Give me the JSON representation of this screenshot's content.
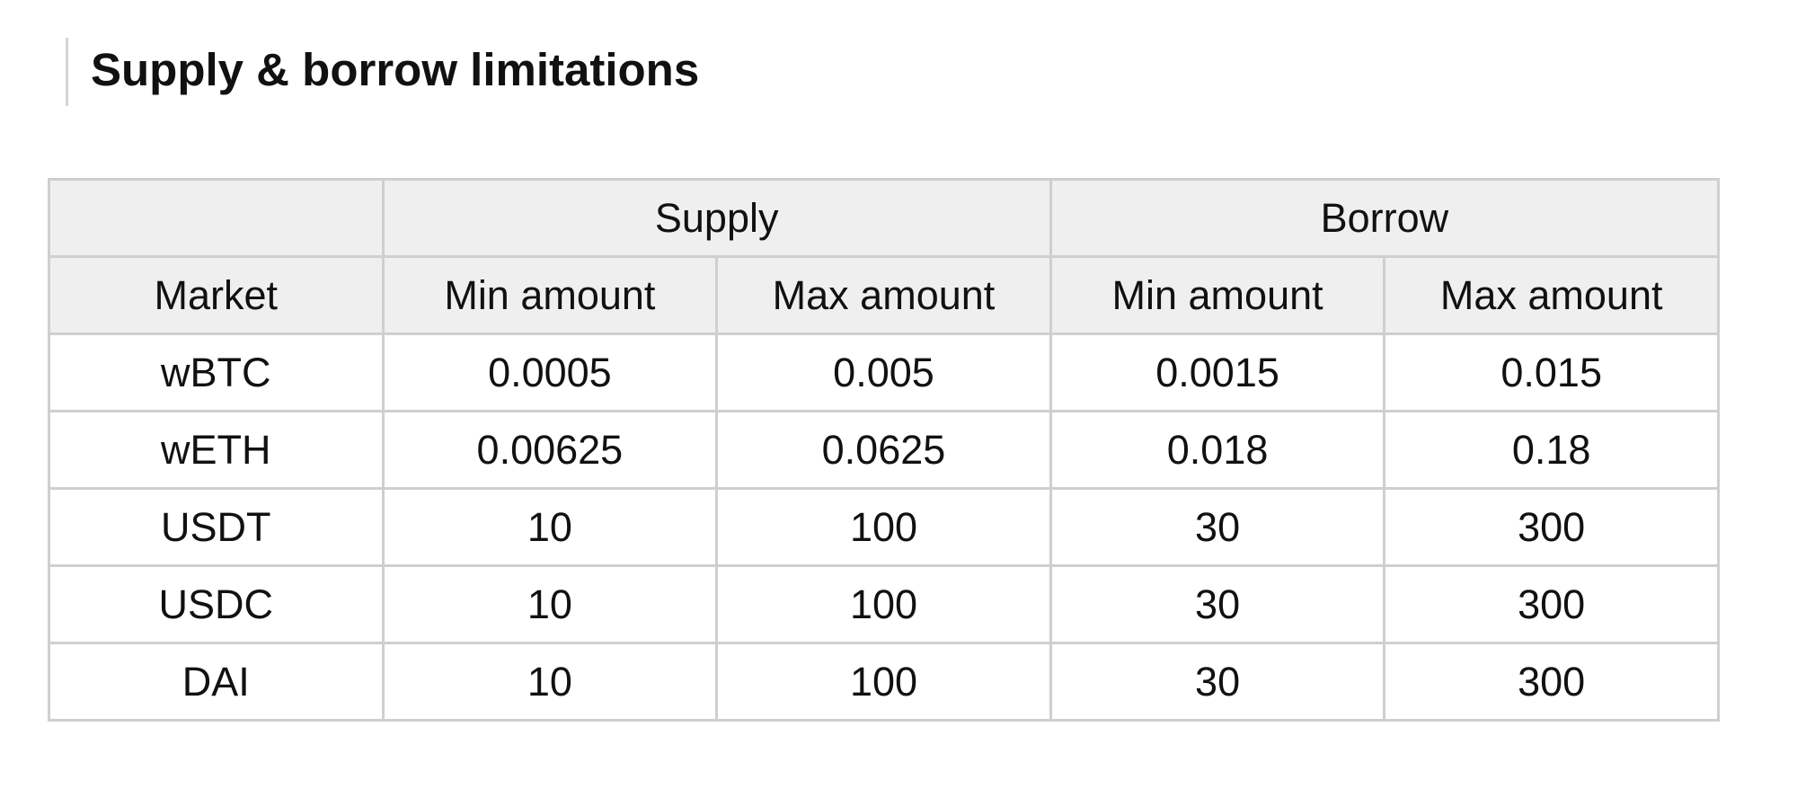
{
  "page": {
    "title": "Supply & borrow limitations"
  },
  "table": {
    "group_headers": [
      "",
      "Supply",
      "Borrow"
    ],
    "columns": [
      "Market",
      "Min amount",
      "Max amount",
      "Min amount",
      "Max amount"
    ],
    "rows": [
      [
        "wBTC",
        "0.0005",
        "0.005",
        "0.0015",
        "0.015"
      ],
      [
        "wETH",
        "0.00625",
        "0.0625",
        "0.018",
        "0.18"
      ],
      [
        "USDT",
        "10",
        "100",
        "30",
        "300"
      ],
      [
        "USDC",
        "10",
        "100",
        "30",
        "300"
      ],
      [
        "DAI",
        "10",
        "100",
        "30",
        "300"
      ]
    ]
  },
  "colors": {
    "header_background": "#efefef",
    "border": "#cfcfcf",
    "text": "#111111",
    "heading_accent_bar": "#d4d4d4"
  }
}
